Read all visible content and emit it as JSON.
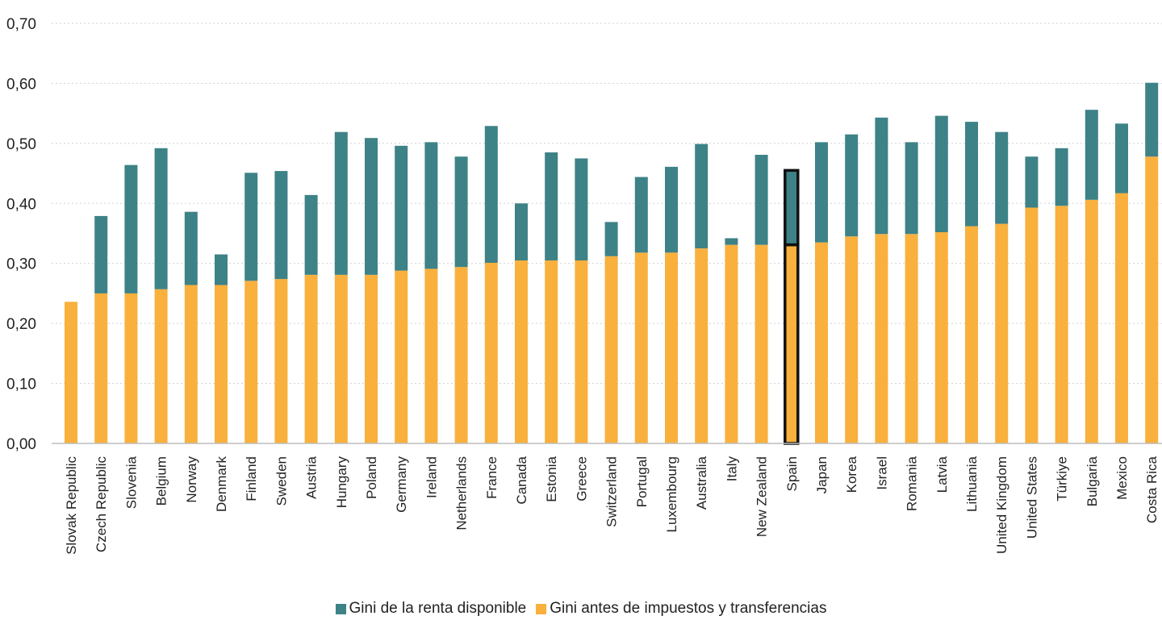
{
  "chart_data": {
    "type": "bar",
    "stacked": true,
    "categories": [
      "Slovak Republic",
      "Czech Republic",
      "Slovenia",
      "Belgium",
      "Norway",
      "Denmark",
      "Finland",
      "Sweden",
      "Austria",
      "Hungary",
      "Poland",
      "Germany",
      "Ireland",
      "Netherlands",
      "France",
      "Canada",
      "Estonia",
      "Greece",
      "Switzerland",
      "Portugal",
      "Luxembourg",
      "Australia",
      "Italy",
      "New Zealand",
      "Spain",
      "Japan",
      "Korea",
      "Israel",
      "Romania",
      "Latvia",
      "Lithuania",
      "United Kingdom",
      "United States",
      "Türkiye",
      "Bulgaria",
      "Mexico",
      "Costa Rica"
    ],
    "series": [
      {
        "name": "Gini antes de impuestos y transferencias",
        "color": "#F9B03D",
        "values": [
          0.236,
          0.25,
          0.25,
          0.257,
          0.264,
          0.264,
          0.271,
          0.274,
          0.281,
          0.281,
          0.281,
          0.288,
          0.291,
          0.294,
          0.301,
          0.305,
          0.305,
          0.305,
          0.312,
          0.318,
          0.318,
          0.325,
          0.331,
          0.331,
          0.331,
          0.335,
          0.345,
          0.349,
          0.349,
          0.352,
          0.362,
          0.366,
          0.393,
          0.396,
          0.406,
          0.417,
          0.478
        ]
      },
      {
        "name": "Gini de la renta disponible",
        "color": "#3D8287",
        "values": [
          0.0,
          0.129,
          0.214,
          0.235,
          0.122,
          0.051,
          0.18,
          0.18,
          0.133,
          0.238,
          0.228,
          0.208,
          0.211,
          0.184,
          0.228,
          0.095,
          0.18,
          0.17,
          0.057,
          0.126,
          0.143,
          0.174,
          0.011,
          0.15,
          0.124,
          0.167,
          0.17,
          0.194,
          0.153,
          0.194,
          0.174,
          0.153,
          0.085,
          0.096,
          0.15,
          0.116,
          0.123
        ]
      }
    ],
    "highlight_category": "Spain",
    "ylim": [
      0,
      0.7
    ],
    "yticks": [
      "0,00",
      "0,10",
      "0,20",
      "0,30",
      "0,40",
      "0,50",
      "0,60",
      "0,70"
    ],
    "grid": true,
    "legend": "bottom"
  },
  "legend": {
    "items": [
      {
        "label": "Gini de la renta disponible",
        "color": "#3D8287"
      },
      {
        "label": "Gini antes de impuestos y transferencias",
        "color": "#F9B03D"
      }
    ]
  }
}
